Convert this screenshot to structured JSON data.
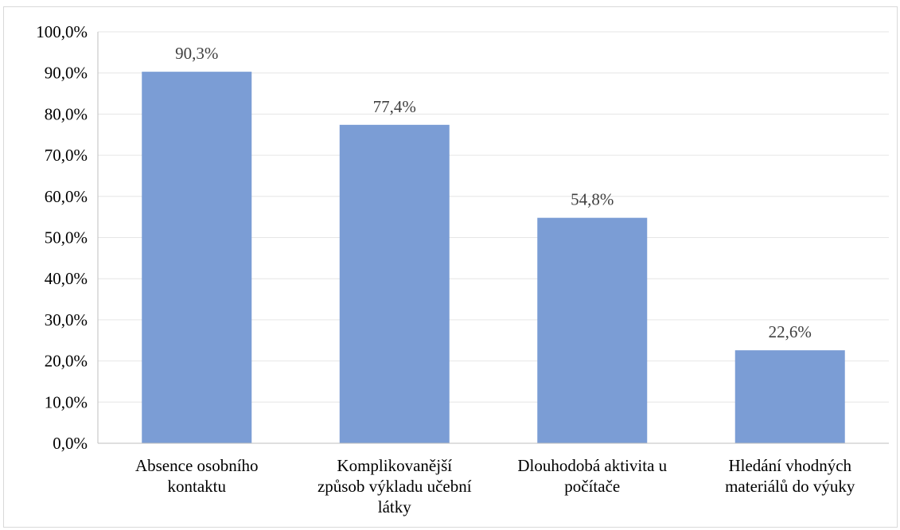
{
  "chart_data": {
    "type": "bar",
    "title": "",
    "xlabel": "",
    "ylabel": "",
    "categories": [
      [
        "Absence osobního",
        "kontaktu"
      ],
      [
        "Komplikovanější",
        "způsob výkladu učební",
        "látky"
      ],
      [
        "Dlouhodobá aktivita u",
        "počítače"
      ],
      [
        "Hledání vhodných",
        "materiálů do výuky"
      ]
    ],
    "values": [
      90.3,
      77.4,
      54.8,
      22.6
    ],
    "data_labels": [
      "90,3%",
      "77,4%",
      "54,8%",
      "22,6%"
    ],
    "ylim": [
      0,
      100
    ],
    "yticks": [
      0,
      10,
      20,
      30,
      40,
      50,
      60,
      70,
      80,
      90,
      100
    ],
    "ytick_labels": [
      "0,0%",
      "10,0%",
      "20,0%",
      "30,0%",
      "40,0%",
      "50,0%",
      "60,0%",
      "70,0%",
      "80,0%",
      "90,0%",
      "100,0%"
    ],
    "grid": true,
    "legend": "none",
    "colors": {
      "bar": "#7b9dd5",
      "grid": "#e6e6e6",
      "axis": "#bfbfbf",
      "border": "#d9d9d9"
    }
  }
}
